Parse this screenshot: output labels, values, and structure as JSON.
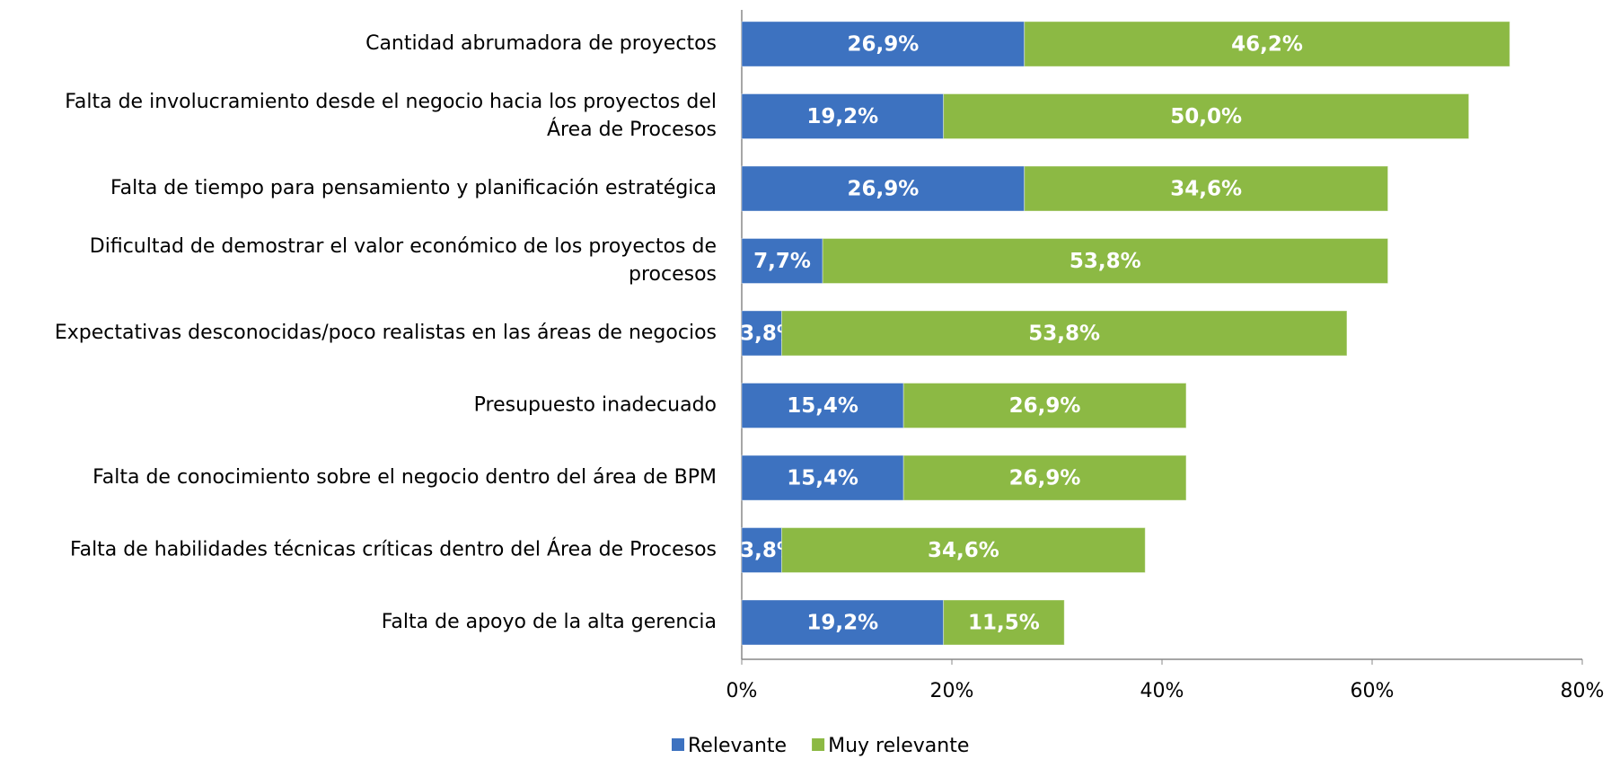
{
  "chart_data": {
    "type": "stacked_bar_horizontal",
    "categories": [
      "Cantidad abrumadora de proyectos",
      "Falta de involucramiento desde el negocio hacia los proyectos del\nÁrea de Procesos",
      "Falta de tiempo para pensamiento y planificación estratégica",
      "Dificultad de demostrar el valor económico de los proyectos de\nprocesos",
      "Expectativas desconocidas/poco realistas en las áreas de negocios",
      "Presupuesto inadecuado",
      "Falta de conocimiento sobre el negocio dentro del área de BPM",
      "Falta de habilidades técnicas críticas dentro del Área de Procesos",
      "Falta de apoyo de la alta gerencia"
    ],
    "series": [
      {
        "name": "Relevante",
        "color": "#3d72c0",
        "values": [
          26.9,
          19.2,
          26.9,
          7.7,
          3.8,
          15.4,
          15.4,
          3.8,
          19.2
        ],
        "value_labels": [
          "26,9%",
          "19,2%",
          "26,9%",
          "7,7%",
          "3,8%",
          "15,4%",
          "15,4%",
          "3,8%",
          "19,2%"
        ]
      },
      {
        "name": "Muy relevante",
        "color": "#8cb944",
        "values": [
          46.2,
          50.0,
          34.6,
          53.8,
          53.8,
          26.9,
          26.9,
          34.6,
          11.5
        ],
        "value_labels": [
          "46,2%",
          "50,0%",
          "34,6%",
          "53,8%",
          "53,8%",
          "26,9%",
          "26,9%",
          "34,6%",
          "11,5%"
        ]
      }
    ],
    "xlim": [
      0,
      80
    ],
    "xticks": [
      {
        "value": 0,
        "label": "0%"
      },
      {
        "value": 20,
        "label": "20%"
      },
      {
        "value": 40,
        "label": "40%"
      },
      {
        "value": 60,
        "label": "60%"
      },
      {
        "value": 80,
        "label": "80%"
      }
    ],
    "legend": "bottom"
  }
}
